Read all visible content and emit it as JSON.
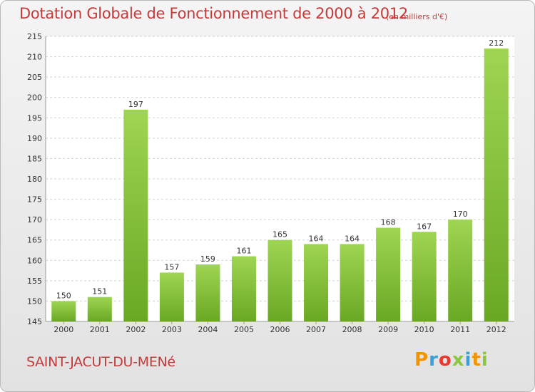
{
  "chart_data": {
    "type": "bar",
    "title": "Dotation Globale de Fonctionnement de 2000 à 2012",
    "subtitle": "(en milliers d'€)",
    "categories": [
      "2000",
      "2001",
      "2002",
      "2003",
      "2004",
      "2005",
      "2006",
      "2007",
      "2008",
      "2009",
      "2010",
      "2011",
      "2012"
    ],
    "values": [
      150,
      151,
      197,
      157,
      159,
      161,
      165,
      164,
      164,
      168,
      167,
      170,
      212
    ],
    "ylim": [
      145,
      215
    ],
    "yticks": [
      145,
      150,
      155,
      160,
      165,
      170,
      175,
      180,
      185,
      190,
      195,
      200,
      205,
      210,
      215
    ],
    "grid": true,
    "bar_color": "#8cc63e"
  },
  "footer": {
    "commune": "SAINT-JACUT-DU-MENé",
    "logo_letters": [
      "P",
      "r",
      "o",
      "x",
      "i",
      "t",
      "i"
    ],
    "logo_colors": [
      "#f29400",
      "#3aa0d8",
      "#e8382f",
      "#8cc63e",
      "#3aa0d8",
      "#f29400",
      "#8cc63e"
    ]
  }
}
